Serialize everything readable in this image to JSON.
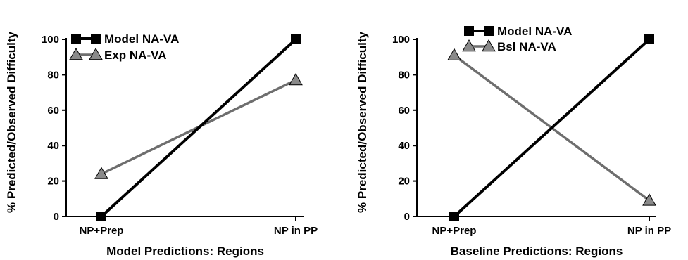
{
  "chart_data": [
    {
      "type": "line",
      "categories": [
        "NP+Prep",
        "NP in PP"
      ],
      "xlabel": "Model Predictions: Regions",
      "ylabel": "% Predicted/Observed Difficulty",
      "ylim": [
        0,
        100
      ],
      "yticks": [
        0,
        20,
        40,
        60,
        80,
        100
      ],
      "grid": false,
      "legend_position": "top-left",
      "series": [
        {
          "name": "Model NA-VA",
          "values": [
            0,
            100
          ],
          "color": "#000000",
          "marker": "square"
        },
        {
          "name": "Exp NA-VA",
          "values": [
            24,
            77
          ],
          "color": "#6e6e6e",
          "marker": "triangle"
        }
      ]
    },
    {
      "type": "line",
      "categories": [
        "NP+Prep",
        "NP in PP"
      ],
      "xlabel": "Baseline Predictions: Regions",
      "ylabel": "% Predicted/Observed Difficulty",
      "ylim": [
        0,
        100
      ],
      "yticks": [
        0,
        20,
        40,
        60,
        80,
        100
      ],
      "grid": false,
      "legend_position": "top-left",
      "series": [
        {
          "name": "Model NA-VA",
          "values": [
            0,
            100
          ],
          "color": "#000000",
          "marker": "square"
        },
        {
          "name": "Bsl NA-VA",
          "values": [
            91,
            9
          ],
          "color": "#6e6e6e",
          "marker": "triangle"
        }
      ]
    }
  ]
}
